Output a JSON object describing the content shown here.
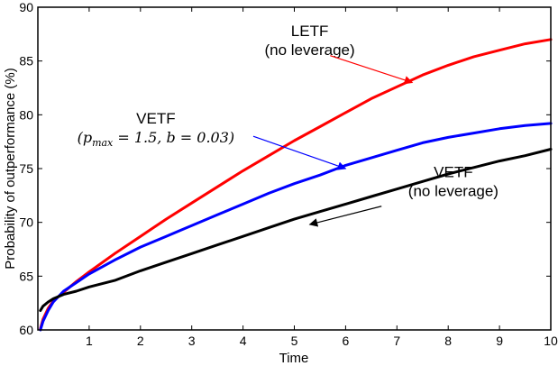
{
  "chart_data": {
    "type": "line",
    "xlabel": "Time",
    "ylabel": "Probability of outperformance (%)",
    "xlim": [
      0,
      10
    ],
    "ylim": [
      60,
      90
    ],
    "xticks": [
      1,
      2,
      3,
      4,
      5,
      6,
      7,
      8,
      9,
      10
    ],
    "yticks": [
      60,
      65,
      70,
      75,
      80,
      85,
      90
    ],
    "grid": false,
    "series": [
      {
        "name": "LETF (no leverage)",
        "color": "#ff0000",
        "x": [
          0.05,
          0.1,
          0.2,
          0.3,
          0.5,
          0.75,
          1,
          1.5,
          2,
          2.5,
          3,
          3.5,
          4,
          4.5,
          5,
          5.5,
          6,
          6.5,
          7,
          7.5,
          8,
          8.5,
          9,
          9.5,
          10
        ],
        "y": [
          60.1,
          61.0,
          62.0,
          62.7,
          63.5,
          64.5,
          65.4,
          67.1,
          68.7,
          70.3,
          71.8,
          73.3,
          74.8,
          76.2,
          77.6,
          78.9,
          80.2,
          81.5,
          82.6,
          83.7,
          84.6,
          85.4,
          86.0,
          86.6,
          87.0
        ]
      },
      {
        "name": "VETF (p_max = 1.5, b = 0.03)",
        "color": "#0000ff",
        "x": [
          0.05,
          0.1,
          0.2,
          0.3,
          0.5,
          0.75,
          1,
          1.5,
          2,
          2.5,
          3,
          3.5,
          4,
          4.5,
          5,
          5.5,
          6,
          6.5,
          7,
          7.5,
          8,
          8.5,
          9,
          9.5,
          10
        ],
        "y": [
          60.0,
          60.8,
          61.8,
          62.6,
          63.6,
          64.4,
          65.2,
          66.5,
          67.7,
          68.7,
          69.7,
          70.7,
          71.7,
          72.7,
          73.6,
          74.4,
          75.3,
          76.0,
          76.7,
          77.4,
          77.9,
          78.3,
          78.7,
          79.0,
          79.2
        ]
      },
      {
        "name": "VETF (no leverage)",
        "color": "#000000",
        "x": [
          0.05,
          0.1,
          0.2,
          0.3,
          0.5,
          0.75,
          1,
          1.5,
          2,
          2.5,
          3,
          3.5,
          4,
          4.5,
          5,
          5.5,
          6,
          6.5,
          7,
          7.5,
          8,
          8.5,
          9,
          9.5,
          10
        ],
        "y": [
          61.8,
          62.2,
          62.6,
          62.9,
          63.3,
          63.6,
          64.0,
          64.6,
          65.5,
          66.3,
          67.1,
          67.9,
          68.7,
          69.5,
          70.3,
          71.0,
          71.7,
          72.4,
          73.1,
          73.8,
          74.5,
          75.1,
          75.7,
          76.2,
          76.8
        ]
      }
    ],
    "annotations": [
      {
        "name": "letf",
        "lines": [
          "LETF",
          "(no leverage)"
        ],
        "color": "#ff0000",
        "text_anchor": [
          5.3,
          87.3
        ],
        "arrow_tail": [
          5.7,
          85.5
        ],
        "arrow_head": [
          7.3,
          83.0
        ]
      },
      {
        "name": "vetf-pmax",
        "lines": [
          "VETF",
          "(p_max = 1.5, b = 0.03)"
        ],
        "color": "#0000ff",
        "text_anchor": [
          2.3,
          79.2
        ],
        "arrow_tail": [
          4.2,
          78.0
        ],
        "arrow_head": [
          6.0,
          75.0
        ]
      },
      {
        "name": "vetf-no-leverage",
        "lines": [
          "VETF",
          "(no leverage)"
        ],
        "color": "#000000",
        "text_anchor": [
          8.1,
          74.2
        ],
        "arrow_tail": [
          6.7,
          71.5
        ],
        "arrow_head": [
          5.3,
          69.8
        ]
      }
    ]
  }
}
